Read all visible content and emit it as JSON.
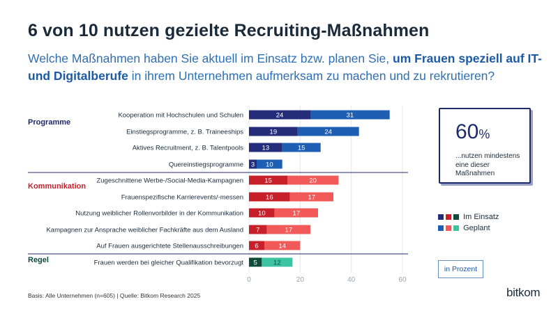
{
  "title": "6 von 10 nutzen gezielte Recruiting-Maßnahmen",
  "subtitle": {
    "part1": "Welche Maßnahmen haben Sie aktuell im Einsatz bzw. planen Sie, ",
    "bold": "um Frauen speziell auf IT- und Digitalberufe",
    "part2": " in ihrem Unternehmen aufmerksam zu machen und zu rekrutieren?"
  },
  "callout": {
    "value": "60",
    "unit": "%",
    "text": "...nutzen mindestens eine dieser Maßnahmen"
  },
  "legend": {
    "in_use": "Im Einsatz",
    "planned": "Geplant"
  },
  "unit_note": "in Prozent",
  "footer": "Basis: Alle Unternehmen (n=605) | Quelle: Bitkom Research 2025",
  "logo": "bitkom",
  "colors": {
    "Programme": {
      "in_use": "#232d7a",
      "planned": "#1e5fb4",
      "label": "#1d2a6b"
    },
    "Kommunikation": {
      "in_use": "#c8202a",
      "planned": "#f25a5a",
      "label": "#c8202a"
    },
    "Regel": {
      "in_use": "#0f4a3a",
      "planned": "#3cc4a2",
      "label": "#0f4a3a"
    }
  },
  "chart_data": {
    "type": "bar",
    "orientation": "horizontal",
    "stacked": true,
    "xlim": [
      0,
      60
    ],
    "xticks": [
      0,
      20,
      40,
      60
    ],
    "series_names": [
      "Im Einsatz",
      "Geplant"
    ],
    "groups": [
      {
        "name": "Programme",
        "rows": [
          {
            "label": "Kooperation mit Hochschulen und Schulen",
            "in_use": 24,
            "planned": 31
          },
          {
            "label": "Einstiegsprogramme, z. B. Traineeships",
            "in_use": 19,
            "planned": 24
          },
          {
            "label": "Aktives Recruitment, z. B. Talentpools",
            "in_use": 13,
            "planned": 15
          },
          {
            "label": "Quereinstiegsprogramme",
            "in_use": 3,
            "planned": 10
          }
        ]
      },
      {
        "name": "Kommunikation",
        "rows": [
          {
            "label": "Zugeschnittene Werbe-/Social-Media-Kampagnen",
            "in_use": 15,
            "planned": 20
          },
          {
            "label": "Frauenspezifische Karrierevents/-messen",
            "in_use": 16,
            "planned": 17
          },
          {
            "label": "Nutzung weiblicher Rollenvorbilder in der Kommunikation",
            "in_use": 10,
            "planned": 17
          },
          {
            "label": "Kampagnen zur Ansprache weiblicher Fachkräfte aus dem Ausland",
            "in_use": 7,
            "planned": 17
          },
          {
            "label": "Auf Frauen ausgerichtete Stellenausschreibungen",
            "in_use": 6,
            "planned": 14
          }
        ]
      },
      {
        "name": "Regel",
        "rows": [
          {
            "label": "Frauen werden bei gleicher Qualifikation bevorzugt",
            "in_use": 5,
            "planned": 12
          }
        ]
      }
    ]
  }
}
